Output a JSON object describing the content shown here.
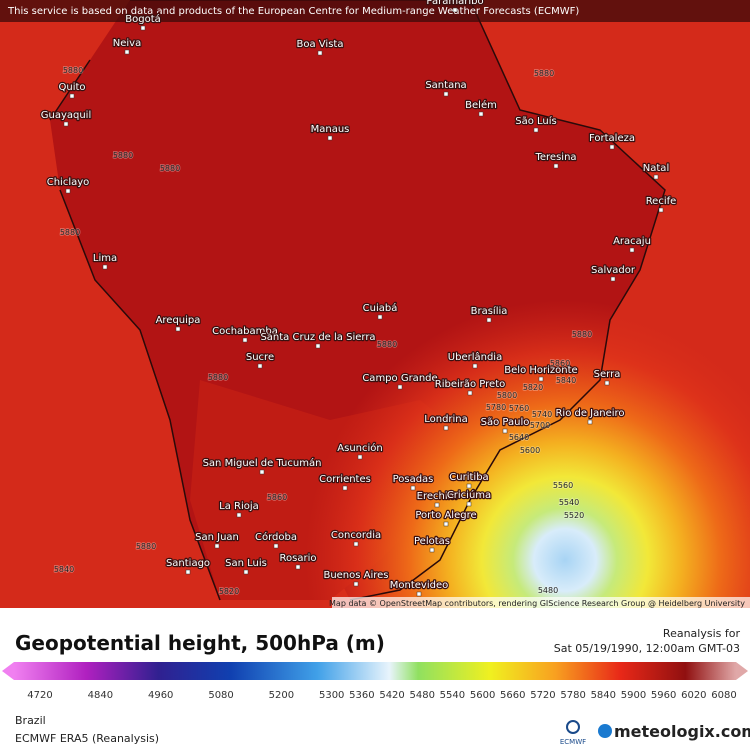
{
  "header": {
    "notice": "This service is based on data and products of the European Centre for Medium-range Weather Forecasts (ECMWF)"
  },
  "map": {
    "cities": [
      "Paramaribo",
      "Bogotá",
      "Neiva",
      "Boa Vista",
      "Quito",
      "Guayaquil",
      "Santana",
      "Belém",
      "São Luís",
      "Manaus",
      "Fortaleza",
      "Teresina",
      "Natal",
      "Chiclayo",
      "Recife",
      "Aracaju",
      "Lima",
      "Salvador",
      "Arequipa",
      "Cochabamba",
      "Santa Cruz de la Sierra",
      "Cuiabá",
      "Brasília",
      "Sucre",
      "Uberlândia",
      "Belo Horizonte",
      "Serra",
      "Campo Grande",
      "Ribeirão Preto",
      "Rio de Janeiro",
      "Londrina",
      "São Paulo",
      "Asunción",
      "San Miguel de Tucumán",
      "Curitiba",
      "Corrientes",
      "Posadas",
      "Erechim",
      "Criciúma",
      "La Rioja",
      "Porto Alegre",
      "San Juan",
      "Córdoba",
      "Concordia",
      "Pelotas",
      "Rosario",
      "Buenos Aires",
      "Santiago",
      "San Luis",
      "Montevideo"
    ],
    "contour_labels": [
      5880,
      5880,
      5880,
      5880,
      5880,
      5880,
      5880,
      5880,
      5860,
      5840,
      5820,
      5800,
      5780,
      5760,
      5740,
      5700,
      5640,
      5600,
      5560,
      5540,
      5520,
      5480,
      5860,
      5840,
      5820,
      5880
    ],
    "attribution": "Map data © OpenStreetMap contributors, rendering GIScience Research Group @ Heidelberg University"
  },
  "legend": {
    "title": "Geopotential height, 500hPa (m)",
    "reanalysis": "Reanalysis for",
    "date": "Sat 05/19/1990, 12:00am GMT-03",
    "ticks": [
      4720,
      4840,
      4960,
      5080,
      5200,
      5300,
      5360,
      5420,
      5480,
      5540,
      5600,
      5660,
      5720,
      5780,
      5840,
      5900,
      5960,
      6020,
      6080
    ]
  },
  "footer": {
    "region": "Brazil",
    "model": "ECMWF ERA5 (Reanalysis)",
    "ecmwf_logo": "ECMWF",
    "brand": "meteologix.com"
  }
}
